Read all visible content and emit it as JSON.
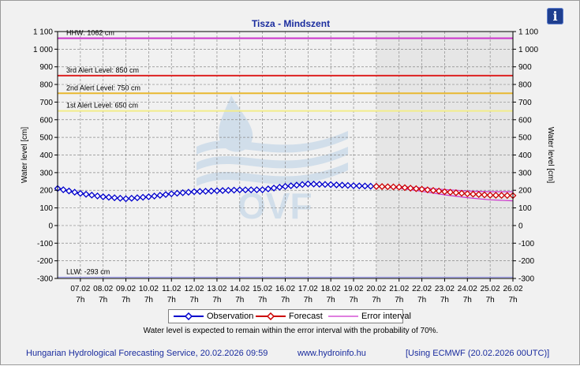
{
  "title": "Tisza - Mindszent",
  "info_icon": "info-icon",
  "legend": {
    "observation": "Observation",
    "forecast": "Forecast",
    "error": "Error interval"
  },
  "note": "Water level is expected to remain within the error interval with the probability of 70%.",
  "footer": {
    "left": "Hungarian Hydrological Forecasting Service, 20.02.2026 09:59",
    "center": "www.hydroinfo.hu",
    "right": "[Using ECMWF (20.02.2026  00UTC)]"
  },
  "chart_data": {
    "type": "line",
    "title": "Tisza - Mindszent",
    "ylabel": "Water level [cm]",
    "y2label": "Water level [cm]",
    "ylim": [
      -300,
      1100
    ],
    "y_ticks": [
      -300,
      -200,
      -100,
      0,
      100,
      200,
      300,
      400,
      500,
      600,
      700,
      800,
      900,
      1000,
      1100
    ],
    "y_tick_labels": [
      "-300",
      "-200",
      "-100",
      "0",
      "100",
      "200",
      "300",
      "400",
      "500",
      "600",
      "700",
      "800",
      "900",
      "1 000",
      "1 100"
    ],
    "x_range": [
      "2026-02-06T07:00",
      "2026-02-26T07:00"
    ],
    "x_ticks": [
      "07.02",
      "08.02",
      "09.02",
      "10.02",
      "11.02",
      "12.02",
      "13.02",
      "14.02",
      "15.02",
      "16.02",
      "17.02",
      "18.02",
      "19.02",
      "20.02",
      "21.02",
      "22.02",
      "23.02",
      "24.02",
      "25.02",
      "26.02"
    ],
    "x_tick_sub": "7h",
    "forecast_start": "2026-02-20T07:00",
    "grid": true,
    "legend_position": "bottom",
    "levels": [
      {
        "label": "HHW: 1062 cm",
        "value": 1062,
        "color": "#cc33cc"
      },
      {
        "label": "3rd Alert Level: 850 cm",
        "value": 850,
        "color": "#dd2222"
      },
      {
        "label": "2nd Alert Level: 750 cm",
        "value": 750,
        "color": "#e8b830"
      },
      {
        "label": "1st Alert Level: 650 cm",
        "value": 650,
        "color": "#f2ec8a"
      },
      {
        "label": "LLW: -293 cm",
        "value": -293,
        "color": "#9999ee"
      }
    ],
    "series": [
      {
        "name": "Observation",
        "color": "#0000cc",
        "x": [
          "2026-02-06T07:00",
          "2026-02-07T07:00",
          "2026-02-08T07:00",
          "2026-02-09T07:00",
          "2026-02-10T07:00",
          "2026-02-11T07:00",
          "2026-02-12T07:00",
          "2026-02-13T07:00",
          "2026-02-14T07:00",
          "2026-02-15T07:00",
          "2026-02-16T07:00",
          "2026-02-17T07:00",
          "2026-02-18T07:00",
          "2026-02-19T07:00",
          "2026-02-20T07:00"
        ],
        "values": [
          210,
          182,
          163,
          152,
          163,
          180,
          192,
          197,
          202,
          203,
          222,
          236,
          232,
          226,
          222
        ]
      },
      {
        "name": "Forecast",
        "color": "#cc0000",
        "x": [
          "2026-02-20T07:00",
          "2026-02-21T07:00",
          "2026-02-22T07:00",
          "2026-02-23T07:00",
          "2026-02-24T07:00",
          "2026-02-25T07:00",
          "2026-02-26T07:00"
        ],
        "values": [
          222,
          218,
          206,
          192,
          180,
          172,
          170
        ]
      },
      {
        "name": "Error interval",
        "color": "#cc33cc",
        "x": [
          "2026-02-20T07:00",
          "2026-02-21T07:00",
          "2026-02-22T07:00",
          "2026-02-23T07:00",
          "2026-02-24T07:00",
          "2026-02-25T07:00",
          "2026-02-26T07:00"
        ],
        "upper": [
          224,
          222,
          214,
          204,
          196,
          192,
          192
        ],
        "lower": [
          220,
          212,
          194,
          174,
          158,
          146,
          140
        ]
      }
    ]
  }
}
